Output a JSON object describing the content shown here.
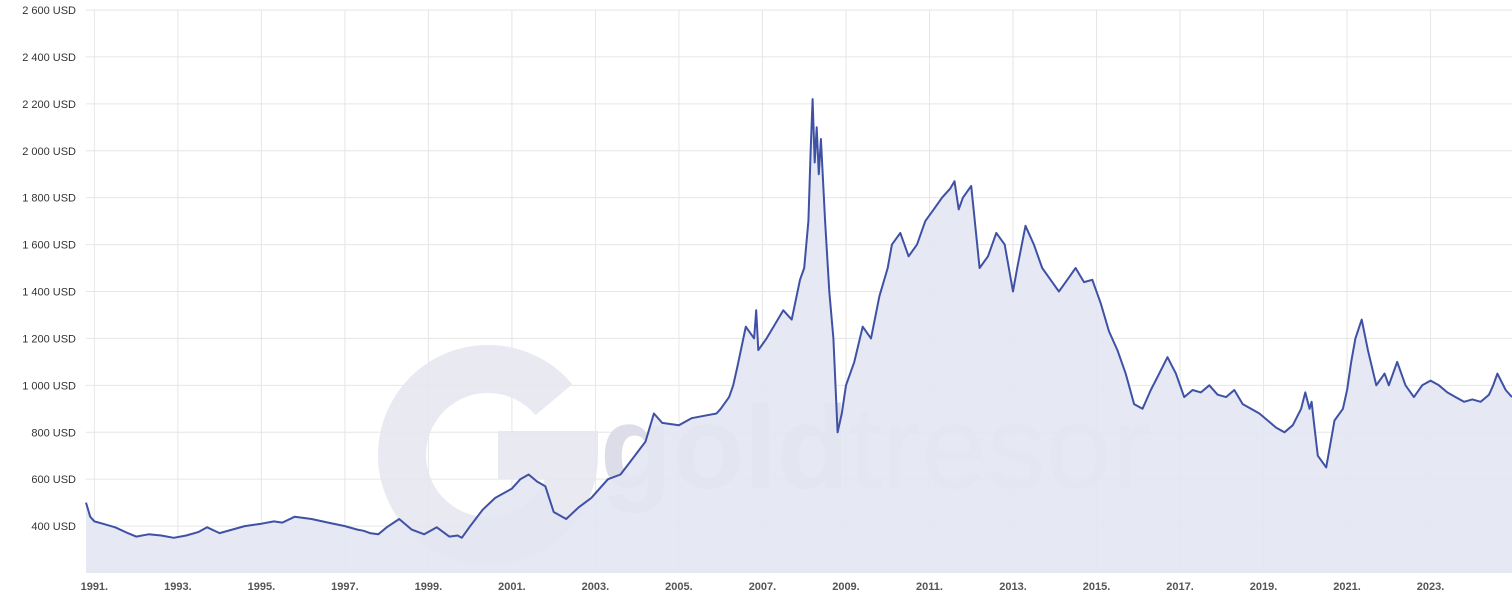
{
  "chart_data": {
    "type": "area",
    "title": "",
    "xlabel": "",
    "ylabel": "",
    "unit": "USD",
    "xlim": [
      1990.8,
      2024.95
    ],
    "ylim": [
      200,
      2600
    ],
    "yticks": [
      400,
      600,
      800,
      1000,
      1200,
      1400,
      1600,
      1800,
      2000,
      2200,
      2400,
      2600
    ],
    "ytick_labels": [
      "400 USD",
      "600 USD",
      "800 USD",
      "1 000 USD",
      "1 200 USD",
      "1 400 USD",
      "1 600 USD",
      "1 800 USD",
      "2 000 USD",
      "2 200 USD",
      "2 400 USD",
      "2 600 USD"
    ],
    "xticks": [
      1991,
      1993,
      1995,
      1997,
      1999,
      2001,
      2003,
      2005,
      2007,
      2009,
      2011,
      2013,
      2015,
      2017,
      2019,
      2021,
      2023
    ],
    "xtick_labels": [
      "1991.",
      "1993.",
      "1995.",
      "1997.",
      "1999.",
      "2001.",
      "2003.",
      "2005.",
      "2007.",
      "2009.",
      "2011.",
      "2013.",
      "2015.",
      "2017.",
      "2019.",
      "2021.",
      "2023."
    ],
    "grid": true,
    "legend": "none",
    "colors": {
      "line": "#3f51a5",
      "fill": "#e3e5f2",
      "watermark": "#e5e6ee"
    },
    "series": [
      {
        "x": [
          1990.8,
          1990.9,
          1991.0,
          1991.2,
          1991.5,
          1991.8,
          1992.0,
          1992.3,
          1992.6,
          1992.9,
          1993.2,
          1993.5,
          1993.7,
          1994.0,
          1994.3,
          1994.6,
          1995.0,
          1995.3,
          1995.5,
          1995.8,
          1996.2,
          1996.6,
          1997.0,
          1997.3,
          1997.45,
          1997.6,
          1997.8,
          1998.0,
          1998.3,
          1998.6,
          1998.9,
          1999.2,
          1999.5,
          1999.7,
          1999.8,
          2000.0,
          2000.3,
          2000.6,
          2001.0,
          2001.2,
          2001.4,
          2001.6,
          2001.8,
          2002.0,
          2002.3,
          2002.6,
          2002.9,
          2003.1,
          2003.3,
          2003.6,
          2003.9,
          2004.2,
          2004.4,
          2004.6,
          2005.0,
          2005.3,
          2005.6,
          2005.9,
          2006.0,
          2006.2,
          2006.3,
          2006.4,
          2006.6,
          2006.8,
          2006.85,
          2006.9,
          2007.1,
          2007.3,
          2007.5,
          2007.7,
          2007.9,
          2008.0,
          2008.1,
          2008.15,
          2008.2,
          2008.25,
          2008.3,
          2008.35,
          2008.4,
          2008.5,
          2008.6,
          2008.7,
          2008.8,
          2008.9,
          2009.0,
          2009.2,
          2009.4,
          2009.6,
          2009.8,
          2010.0,
          2010.1,
          2010.3,
          2010.5,
          2010.7,
          2010.9,
          2011.1,
          2011.3,
          2011.5,
          2011.6,
          2011.7,
          2011.8,
          2012.0,
          2012.2,
          2012.4,
          2012.6,
          2012.8,
          2013.0,
          2013.1,
          2013.3,
          2013.5,
          2013.7,
          2013.9,
          2014.1,
          2014.3,
          2014.5,
          2014.7,
          2014.9,
          2015.1,
          2015.3,
          2015.5,
          2015.7,
          2015.9,
          2016.1,
          2016.3,
          2016.5,
          2016.7,
          2016.9,
          2017.1,
          2017.3,
          2017.5,
          2017.7,
          2017.9,
          2018.1,
          2018.3,
          2018.5,
          2018.7,
          2018.9,
          2019.1,
          2019.3,
          2019.5,
          2019.7,
          2019.9,
          2020.0,
          2020.1,
          2020.15,
          2020.2,
          2020.3,
          2020.5,
          2020.7,
          2020.9,
          2021.0,
          2021.1,
          2021.2,
          2021.35,
          2021.5,
          2021.7,
          2021.9,
          2022.0,
          2022.2,
          2022.4,
          2022.6,
          2022.8,
          2023.0,
          2023.2,
          2023.4,
          2023.6,
          2023.8,
          2024.0,
          2024.2,
          2024.4,
          2024.5,
          2024.6,
          2024.8,
          2024.95
        ],
        "y": [
          500,
          440,
          420,
          410,
          395,
          370,
          355,
          365,
          360,
          350,
          360,
          375,
          395,
          370,
          385,
          400,
          410,
          420,
          415,
          440,
          430,
          415,
          400,
          385,
          380,
          370,
          365,
          395,
          430,
          385,
          365,
          395,
          355,
          360,
          350,
          400,
          470,
          520,
          560,
          600,
          620,
          590,
          570,
          460,
          430,
          480,
          520,
          560,
          600,
          620,
          690,
          760,
          880,
          840,
          830,
          860,
          870,
          880,
          900,
          950,
          1000,
          1080,
          1250,
          1200,
          1320,
          1150,
          1200,
          1260,
          1320,
          1280,
          1450,
          1500,
          1700,
          1980,
          2220,
          1950,
          2100,
          1900,
          2050,
          1700,
          1400,
          1200,
          800,
          880,
          1000,
          1100,
          1250,
          1200,
          1380,
          1500,
          1600,
          1650,
          1550,
          1600,
          1700,
          1750,
          1800,
          1840,
          1870,
          1750,
          1800,
          1850,
          1500,
          1550,
          1650,
          1600,
          1400,
          1500,
          1680,
          1600,
          1500,
          1450,
          1400,
          1450,
          1500,
          1440,
          1450,
          1350,
          1230,
          1150,
          1050,
          920,
          900,
          980,
          1050,
          1120,
          1050,
          950,
          980,
          970,
          1000,
          960,
          950,
          980,
          920,
          900,
          880,
          850,
          820,
          800,
          830,
          900,
          970,
          900,
          930,
          850,
          700,
          650,
          850,
          900,
          980,
          1100,
          1200,
          1280,
          1150,
          1000,
          1050,
          1000,
          1100,
          1000,
          950,
          1000,
          1020,
          1000,
          970,
          950,
          930,
          940,
          930,
          960,
          1000,
          1050,
          980,
          950
        ]
      }
    ]
  },
  "watermark": {
    "text_dark": "gold",
    "text_light": "tresor"
  }
}
